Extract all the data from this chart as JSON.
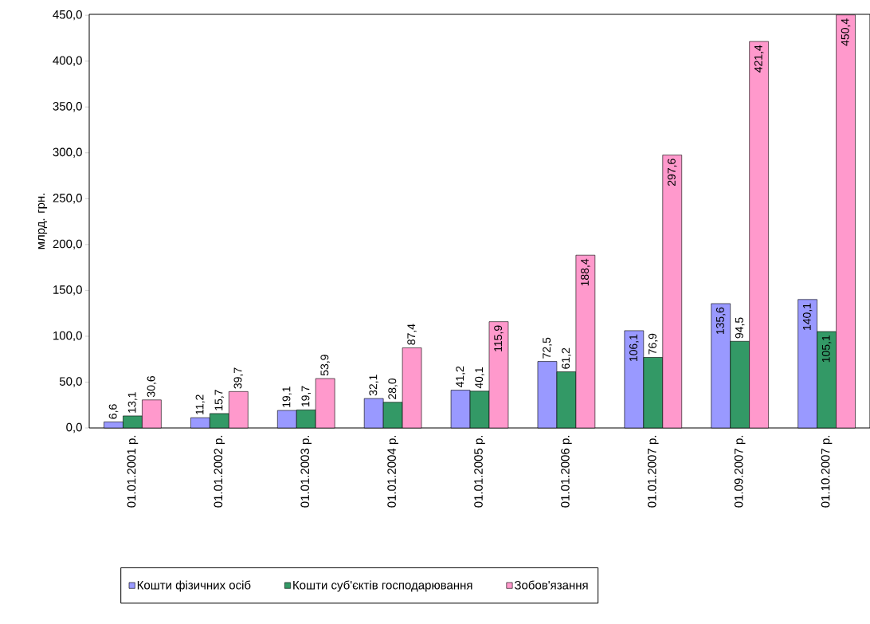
{
  "chart_data": {
    "type": "bar",
    "ylabel": "млрд. грн.",
    "categories": [
      "01.01.2001 р.",
      "01.01.2002 р.",
      "01.01.2003 р.",
      "01.01.2004 р.",
      "01.01.2005 р.",
      "01.01.2006 р.",
      "01.01.2007 р.",
      "01.09.2007 р.",
      "01.10.2007 р."
    ],
    "series": [
      {
        "name": "Кошти фізичних осіб",
        "color": "#9999ff",
        "values": [
          6.6,
          11.2,
          19.1,
          32.1,
          41.2,
          72.5,
          106.1,
          135.6,
          140.1
        ],
        "value_labels": [
          "6,6",
          "11,2",
          "19,1",
          "32,1",
          "41,2",
          "72,5",
          "106,1",
          "135,6",
          "140,1"
        ]
      },
      {
        "name": "Кошти суб'єктів господарювання",
        "color": "#339966",
        "values": [
          13.1,
          15.7,
          19.7,
          28.0,
          40.1,
          61.2,
          76.9,
          94.5,
          105.1
        ],
        "value_labels": [
          "13,1",
          "15,7",
          "19,7",
          "28,0",
          "40,1",
          "61,2",
          "76,9",
          "94,5",
          "105,1"
        ]
      },
      {
        "name": "Зобов'язання",
        "color": "#ff99cc",
        "values": [
          30.6,
          39.7,
          53.9,
          87.4,
          115.9,
          188.4,
          297.6,
          421.4,
          450.4
        ],
        "value_labels": [
          "30,6",
          "39,7",
          "53,9",
          "87,4",
          "115,9",
          "188,4",
          "297,6",
          "421,4",
          "450,4"
        ]
      }
    ],
    "ylim": [
      0,
      451
    ],
    "yticks": [
      {
        "value": 0,
        "label": "0,0"
      },
      {
        "value": 50,
        "label": "50,0"
      },
      {
        "value": 100,
        "label": "100,0"
      },
      {
        "value": 150,
        "label": "150,0"
      },
      {
        "value": 200,
        "label": "200,0"
      },
      {
        "value": 250,
        "label": "250,0"
      },
      {
        "value": 300,
        "label": "300,0"
      },
      {
        "value": 350,
        "label": "350,0"
      },
      {
        "value": 400,
        "label": "400,0"
      },
      {
        "value": 450,
        "label": "450,0"
      }
    ],
    "grid": false,
    "legend": "bottom"
  }
}
